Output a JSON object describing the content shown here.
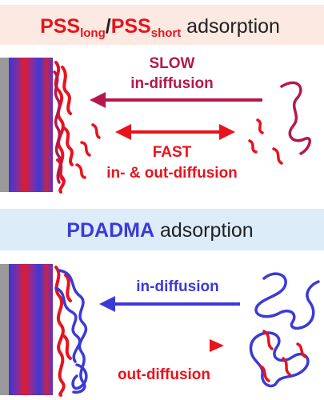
{
  "panel_top": {
    "title_pss1_main": "PSS",
    "title_pss1_sub": "long",
    "title_slash": "/",
    "title_pss2_main": "PSS",
    "title_pss2_sub": "short",
    "title_suffix": " adsorption",
    "slow_label": "SLOW",
    "in_diffusion_label": "in-diffusion",
    "fast_label": "FAST",
    "in_out_label": "in- & out-diffusion"
  },
  "panel_bottom": {
    "title_main": "PDADMA",
    "title_suffix": " adsorption",
    "in_diffusion_label": "in-diffusion",
    "out_diffusion_label": "out-diffusion"
  },
  "colors": {
    "pss_red": "#e8131b",
    "pss_dark": "#b5174d",
    "pdadma_blue": "#3b3ad6",
    "header_top_bg": "#fbe9e2",
    "header_bottom_bg": "#dcecf8",
    "substrate_gray": "#9a9a9a"
  }
}
